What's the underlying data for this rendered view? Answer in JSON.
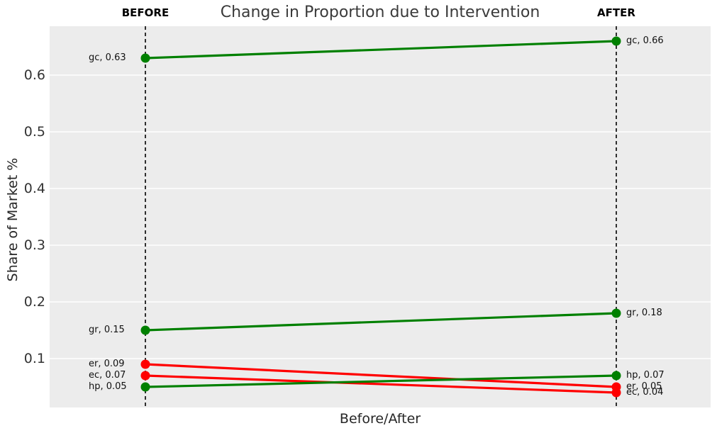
{
  "chart_data": {
    "type": "line",
    "subtype": "slopegraph",
    "title": "Change in Proportion due to Intervention",
    "xlabel": "Before/After",
    "ylabel": "Share of Market %",
    "x_categories": [
      "BEFORE",
      "AFTER"
    ],
    "yticks": [
      0.1,
      0.2,
      0.3,
      0.4,
      0.5,
      0.6
    ],
    "ytick_labels": [
      "0.1",
      "0.2",
      "0.3",
      "0.4",
      "0.5",
      "0.6"
    ],
    "ylim": [
      0.01,
      0.69
    ],
    "grid": "horizontal white gridlines on gray panel",
    "legend": "none",
    "colors": {
      "increase": "#008000",
      "decrease": "#ff0000",
      "panel_bg": "#ececec",
      "gridline": "#ffffff",
      "dashed_guide": "#000000",
      "title_text": "#3a3a3a",
      "label_text": "#111111"
    },
    "series": [
      {
        "name": "gc",
        "before": 0.63,
        "after": 0.66,
        "trend": "increase",
        "color": "#008000",
        "before_label": "gc, 0.63",
        "after_label": "gc, 0.66"
      },
      {
        "name": "gr",
        "before": 0.15,
        "after": 0.18,
        "trend": "increase",
        "color": "#008000",
        "before_label": "gr, 0.15",
        "after_label": "gr, 0.18"
      },
      {
        "name": "er",
        "before": 0.09,
        "after": 0.05,
        "trend": "decrease",
        "color": "#ff0000",
        "before_label": "er, 0.09",
        "after_label": "er, 0.05"
      },
      {
        "name": "ec",
        "before": 0.07,
        "after": 0.04,
        "trend": "decrease",
        "color": "#ff0000",
        "before_label": "ec, 0.07",
        "after_label": "ec, 0.04"
      },
      {
        "name": "hp",
        "before": 0.05,
        "after": 0.07,
        "trend": "increase",
        "color": "#008000",
        "before_label": "hp, 0.05",
        "after_label": "hp, 0.07"
      }
    ]
  }
}
